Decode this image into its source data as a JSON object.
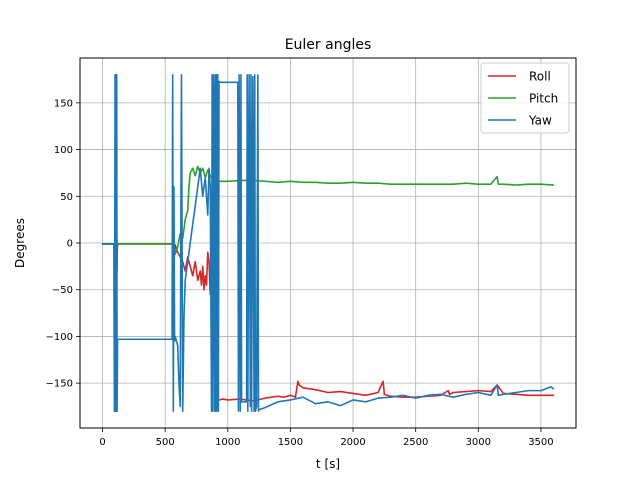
{
  "chart_data": {
    "type": "line",
    "title": "Euler angles",
    "xlabel": "t [s]",
    "ylabel": "Degrees",
    "xlim": [
      -180,
      3780
    ],
    "ylim": [
      -198,
      198
    ],
    "xticks": [
      0,
      500,
      1000,
      1500,
      2000,
      2500,
      3000,
      3500
    ],
    "yticks": [
      -150,
      -100,
      -50,
      0,
      50,
      100,
      150
    ],
    "ytick_labels": [
      "−150",
      "−100",
      "−50",
      "0",
      "50",
      "100",
      "150"
    ],
    "grid": true,
    "legend": "top-right",
    "series": [
      {
        "name": "Roll",
        "color": "#d62728",
        "x": [
          0,
          100,
          112,
          115,
          118,
          121,
          125,
          500,
          560,
          570,
          580,
          600,
          640,
          660,
          680,
          700,
          720,
          740,
          760,
          780,
          790,
          800,
          810,
          820,
          830,
          840,
          850,
          860,
          870,
          880,
          900,
          930,
          960,
          1000,
          1100,
          1200,
          1300,
          1400,
          1450,
          1500,
          1540,
          1560,
          1570,
          1600,
          1700,
          1800,
          1900,
          2000,
          2100,
          2200,
          2240,
          2250,
          2300,
          2400,
          2500,
          2600,
          2700,
          2760,
          2770,
          2800,
          2900,
          3000,
          3100,
          3150,
          3200,
          3300,
          3400,
          3500,
          3600
        ],
        "y": [
          -1,
          -1,
          -12,
          -30,
          -5,
          -2,
          -1,
          -1,
          -1,
          -18,
          -2,
          -10,
          -20,
          -30,
          -15,
          -25,
          -35,
          -20,
          -40,
          -30,
          -45,
          -25,
          -50,
          -35,
          -45,
          -10,
          -20,
          -55,
          -35,
          -45,
          -168,
          -168,
          -167,
          -168,
          -167,
          -169,
          -166,
          -164,
          -165,
          -163,
          -165,
          -148,
          -152,
          -155,
          -157,
          -160,
          -159,
          -161,
          -163,
          -160,
          -148,
          -162,
          -164,
          -165,
          -165,
          -164,
          -163,
          -158,
          -162,
          -160,
          -159,
          -158,
          -159,
          -152,
          -161,
          -162,
          -163,
          -163,
          -163
        ]
      },
      {
        "name": "Pitch",
        "color": "#2ca02c",
        "x": [
          0,
          100,
          112,
          115,
          118,
          125,
          560,
          580,
          600,
          620,
          640,
          660,
          680,
          690,
          700,
          720,
          740,
          760,
          780,
          800,
          820,
          840,
          860,
          880,
          900,
          950,
          1000,
          1100,
          1200,
          1300,
          1400,
          1500,
          1600,
          1700,
          1800,
          1900,
          2000,
          2100,
          2200,
          2300,
          2400,
          2500,
          2600,
          2700,
          2800,
          2900,
          3000,
          3100,
          3150,
          3160,
          3200,
          3300,
          3400,
          3500,
          3600
        ],
        "y": [
          -1,
          -1,
          -8,
          3,
          -2,
          -1,
          -1,
          -12,
          -4,
          10,
          5,
          25,
          35,
          60,
          75,
          80,
          72,
          82,
          75,
          80,
          70,
          78,
          72,
          68,
          66,
          66,
          66,
          67,
          67,
          66,
          65,
          66,
          65,
          65,
          64,
          64,
          65,
          64,
          64,
          63,
          63,
          63,
          63,
          63,
          63,
          64,
          63,
          63,
          71,
          63,
          63,
          62,
          63,
          63,
          62
        ]
      },
      {
        "name": "Yaw",
        "color": "#1f77b4",
        "x": [
          0,
          90,
          95,
          100,
          103,
          106,
          110,
          113,
          116,
          120,
          125,
          300,
          540,
          555,
          560,
          565,
          570,
          575,
          580,
          600,
          610,
          620,
          630,
          640,
          650,
          660,
          680,
          700,
          720,
          740,
          760,
          780,
          800,
          820,
          840,
          850,
          860,
          870,
          875,
          880,
          885,
          890,
          895,
          900,
          905,
          910,
          915,
          920,
          925,
          930,
          940,
          950,
          960,
          970,
          980,
          1000,
          1050,
          1080,
          1085,
          1090,
          1100,
          1105,
          1110,
          1120,
          1150,
          1155,
          1160,
          1170,
          1180,
          1185,
          1190,
          1200,
          1210,
          1215,
          1220,
          1230,
          1240,
          1245,
          1250,
          1260,
          1300,
          1400,
          1500,
          1600,
          1700,
          1800,
          1900,
          2000,
          2100,
          2200,
          2300,
          2400,
          2500,
          2600,
          2700,
          2800,
          2900,
          3000,
          3100,
          3150,
          3160,
          3200,
          3300,
          3400,
          3500,
          3580,
          3600
        ],
        "y": [
          -1,
          -1,
          -180,
          180,
          -180,
          180,
          -180,
          180,
          -180,
          -103,
          -103,
          -103,
          -103,
          -103,
          180,
          -180,
          60,
          -105,
          -100,
          -110,
          -150,
          -175,
          180,
          -180,
          -80,
          -40,
          -20,
          0,
          20,
          40,
          60,
          80,
          50,
          70,
          30,
          80,
          60,
          -180,
          180,
          -180,
          180,
          150,
          -180,
          180,
          -180,
          180,
          -180,
          180,
          -180,
          173,
          172,
          172,
          172,
          172,
          172,
          172,
          172,
          172,
          -180,
          180,
          -180,
          180,
          -170,
          -170,
          -170,
          180,
          -180,
          180,
          -175,
          180,
          -180,
          178,
          -180,
          180,
          -180,
          -175,
          180,
          -180,
          -178,
          -178,
          -176,
          -170,
          -168,
          -165,
          -172,
          -170,
          -174,
          -168,
          -170,
          -166,
          -165,
          -163,
          -166,
          -163,
          -162,
          -165,
          -162,
          -160,
          -163,
          -152,
          -163,
          -162,
          -160,
          -158,
          -158,
          -154,
          -156
        ]
      }
    ]
  }
}
